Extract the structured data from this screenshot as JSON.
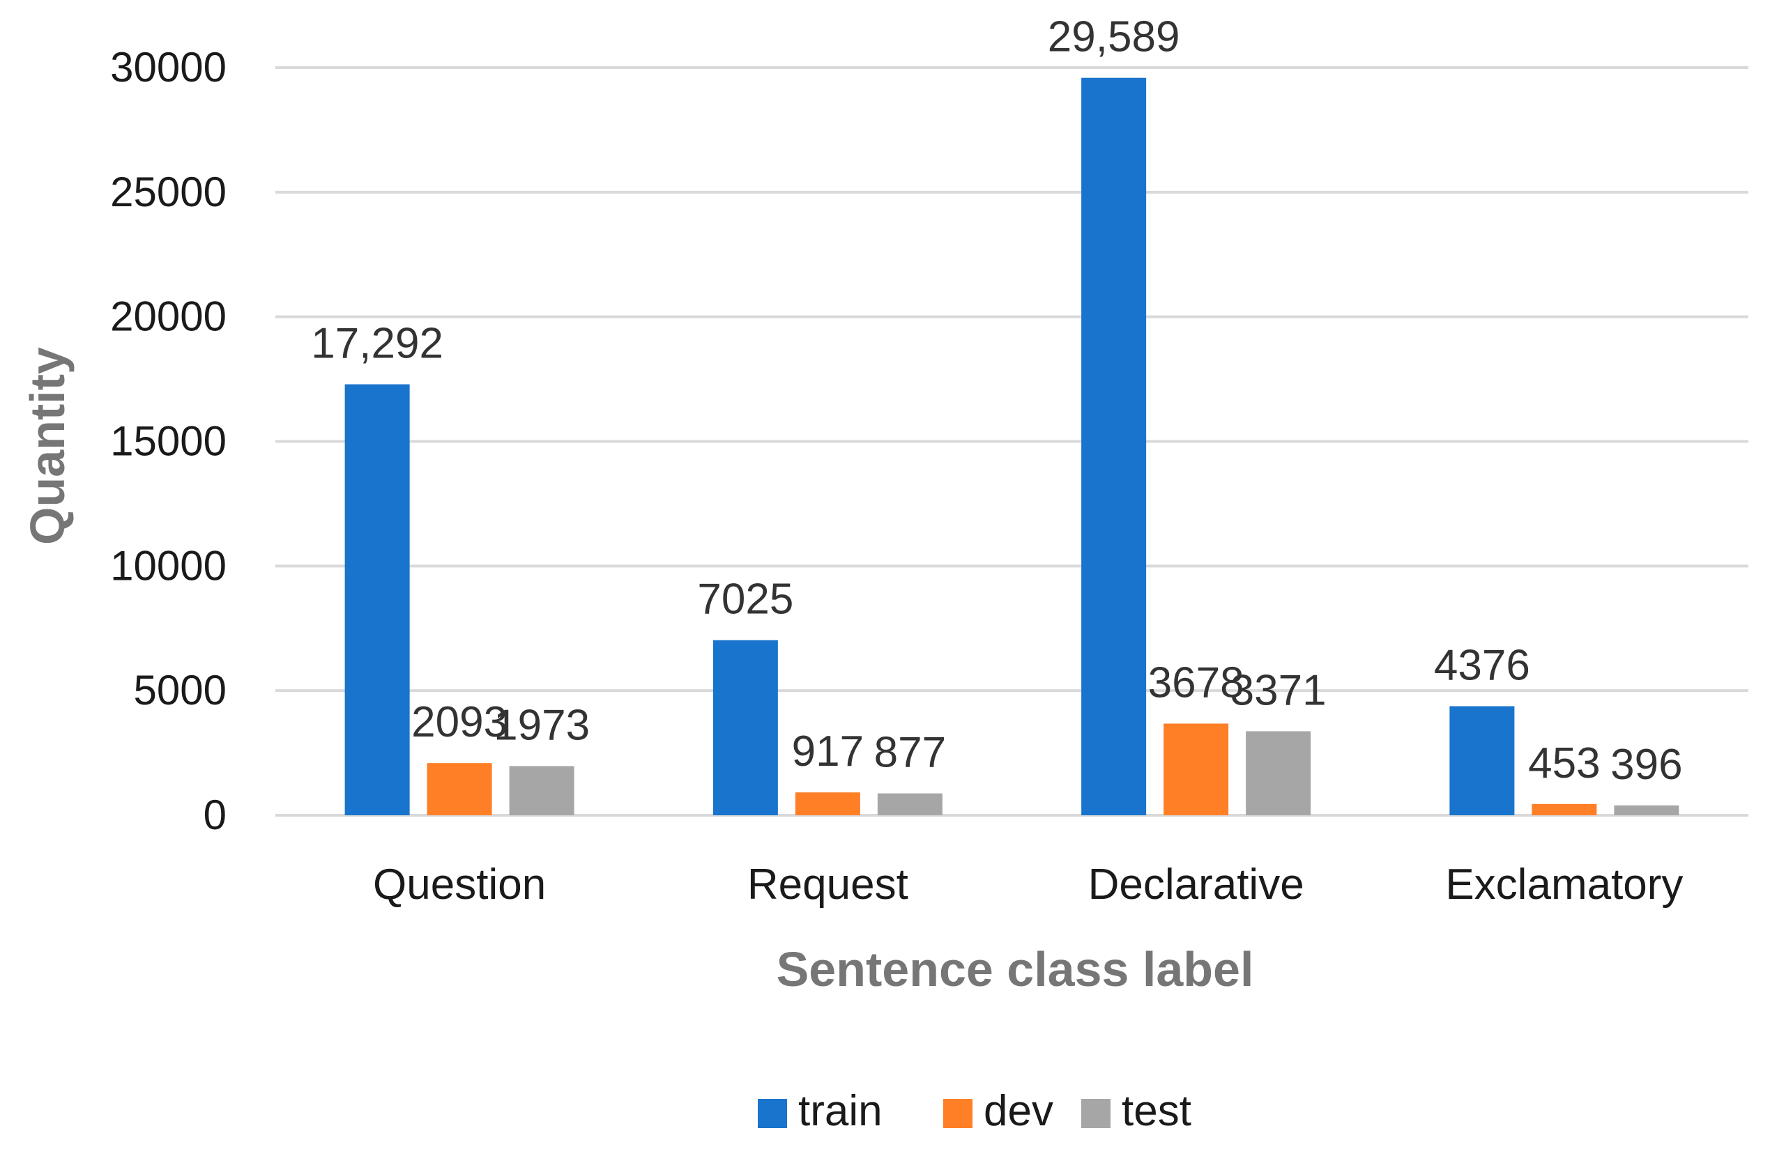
{
  "chart_data": {
    "type": "bar",
    "title": "",
    "xlabel": "Sentence class label",
    "ylabel": "Quantity",
    "ylim": [
      0,
      30000
    ],
    "yticks": [
      0,
      5000,
      10000,
      15000,
      20000,
      25000,
      30000
    ],
    "grid": true,
    "legend_position": "bottom",
    "categories": [
      "Question",
      "Request",
      "Declarative",
      "Exclamatory"
    ],
    "series": [
      {
        "name": "train",
        "color": "#1874CD",
        "values": [
          17292,
          7025,
          29589,
          4376
        ],
        "labels": [
          "17,292",
          "7025",
          "29,589",
          "4376"
        ]
      },
      {
        "name": "dev",
        "color": "#FF7F27",
        "values": [
          2093,
          917,
          3678,
          453
        ],
        "labels": [
          "2093",
          "917",
          "3678",
          "453"
        ]
      },
      {
        "name": "test",
        "color": "#A6A6A6",
        "values": [
          1973,
          877,
          3371,
          396
        ],
        "labels": [
          "1973",
          "877",
          "3371",
          "396"
        ]
      }
    ]
  }
}
